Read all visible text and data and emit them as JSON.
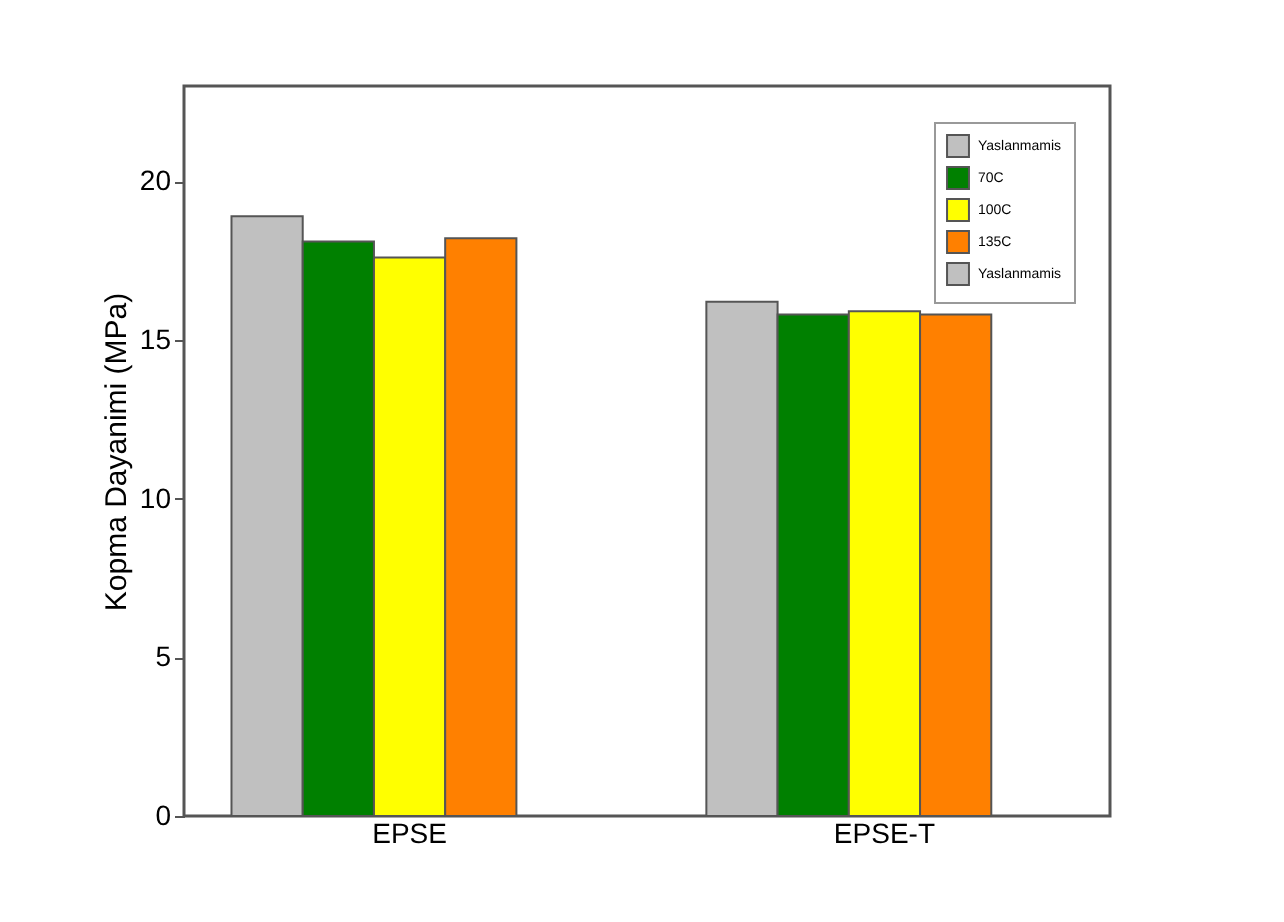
{
  "chart_data": {
    "type": "bar",
    "ylabel": "Kopma Dayanimi (MPa)",
    "categories": [
      "EPSE",
      "EPSE-T"
    ],
    "series": [
      {
        "name": "Yaslanmamis",
        "color": "#c0c0c0",
        "values": [
          18.9,
          16.2
        ]
      },
      {
        "name": "70C",
        "color": "#008000",
        "values": [
          18.1,
          15.8
        ]
      },
      {
        "name": "100C",
        "color": "#ffff00",
        "values": [
          17.6,
          15.9
        ]
      },
      {
        "name": "135C",
        "color": "#ff8000",
        "values": [
          18.2,
          15.8
        ]
      },
      {
        "name": "Yaslanmamis",
        "color": "#c0c0c0",
        "values": [
          null,
          null
        ]
      }
    ],
    "ylim": [
      0,
      23
    ],
    "yticks": [
      0,
      5,
      10,
      15,
      20
    ],
    "grid": false,
    "legend": "top right"
  }
}
